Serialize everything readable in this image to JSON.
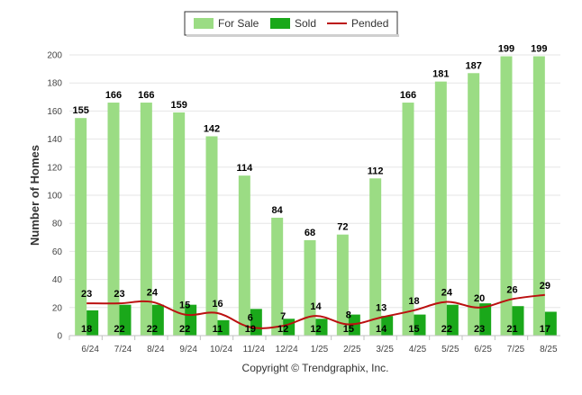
{
  "chart_data": {
    "type": "bar",
    "categories": [
      "6/24",
      "7/24",
      "8/24",
      "9/24",
      "10/24",
      "11/24",
      "12/24",
      "1/25",
      "2/25",
      "3/25",
      "4/25",
      "5/25",
      "6/25",
      "7/25",
      "8/25"
    ],
    "series": [
      {
        "name": "For Sale",
        "type": "bar",
        "color": "#9bdc84",
        "values": [
          155,
          166,
          166,
          159,
          142,
          114,
          84,
          68,
          72,
          112,
          166,
          181,
          187,
          199,
          199
        ]
      },
      {
        "name": "Sold",
        "type": "bar",
        "color": "#1aa81a",
        "values": [
          18,
          22,
          22,
          22,
          11,
          19,
          12,
          12,
          15,
          14,
          15,
          22,
          23,
          21,
          17
        ]
      },
      {
        "name": "Pended",
        "type": "line",
        "color": "#bb1010",
        "values": [
          23,
          23,
          24,
          15,
          16,
          6,
          7,
          14,
          8,
          13,
          18,
          24,
          20,
          26,
          29
        ]
      }
    ],
    "ylabel": "Number of Homes",
    "xlabel": "",
    "ylim": [
      0,
      200
    ],
    "yticks": [
      0,
      20,
      40,
      60,
      80,
      100,
      120,
      140,
      160,
      180,
      200
    ],
    "grid": true,
    "legend_position": "top-center"
  },
  "credit": "Copyright © Trendgraphix, Inc."
}
